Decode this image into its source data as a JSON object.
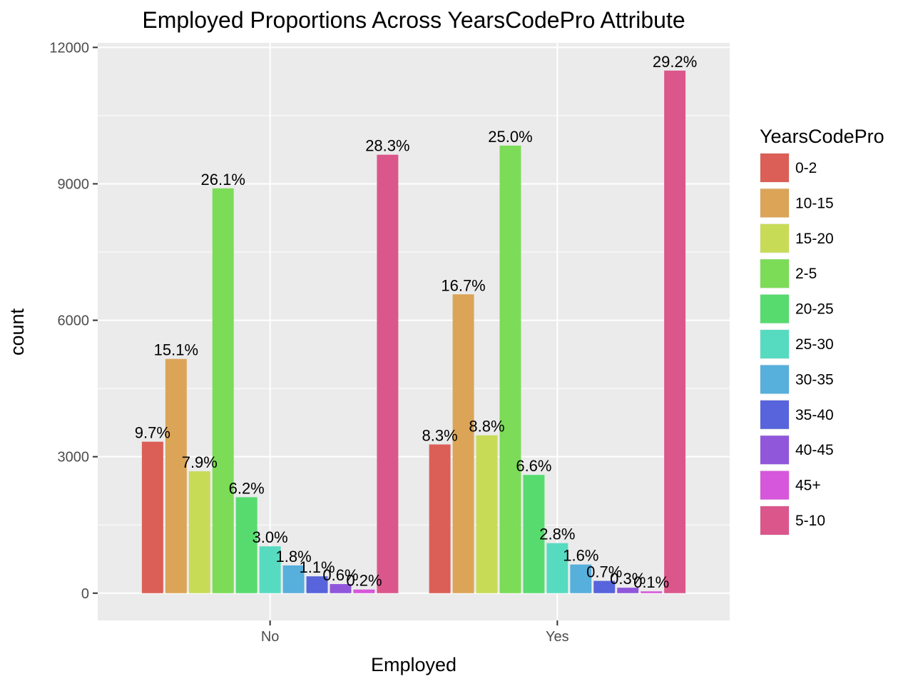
{
  "chart_data": {
    "type": "bar",
    "title": "Employed Proportions Across YearsCodePro Attribute",
    "xlabel": "Employed",
    "ylabel": "count",
    "ylim": [
      -600,
      12100
    ],
    "yticks": [
      0,
      3000,
      6000,
      9000,
      12000
    ],
    "grid": true,
    "legend": {
      "title": "YearsCodePro",
      "placement": "right"
    },
    "categories": [
      "No",
      "Yes"
    ],
    "series": [
      {
        "name": "0-2",
        "color": "#DB5F57",
        "values": [
          3330,
          3270
        ],
        "labels": [
          "9.7%",
          "8.3%"
        ]
      },
      {
        "name": "10-15",
        "color": "#DBA457",
        "values": [
          5150,
          6570
        ],
        "labels": [
          "15.1%",
          "16.7%"
        ]
      },
      {
        "name": "15-20",
        "color": "#C8DB57",
        "values": [
          2680,
          3470
        ],
        "labels": [
          "7.9%",
          "8.8%"
        ]
      },
      {
        "name": "2-5",
        "color": "#7CDB57",
        "values": [
          8900,
          9840
        ],
        "labels": [
          "26.1%",
          "25.0%"
        ]
      },
      {
        "name": "20-25",
        "color": "#57DB6F",
        "values": [
          2110,
          2600
        ],
        "labels": [
          "6.2%",
          "6.6%"
        ]
      },
      {
        "name": "25-30",
        "color": "#57DBC0",
        "values": [
          1030,
          1100
        ],
        "labels": [
          "3.0%",
          "2.8%"
        ]
      },
      {
        "name": "30-35",
        "color": "#57AFDB",
        "values": [
          610,
          630
        ],
        "labels": [
          "1.8%",
          "1.6%"
        ]
      },
      {
        "name": "35-40",
        "color": "#5764DB",
        "values": [
          370,
          270
        ],
        "labels": [
          "1.1%",
          "0.7%"
        ]
      },
      {
        "name": "40-45",
        "color": "#9057DB",
        "values": [
          200,
          120
        ],
        "labels": [
          "0.6%",
          "0.3%"
        ]
      },
      {
        "name": "45+",
        "color": "#D657DB",
        "values": [
          80,
          40
        ],
        "labels": [
          "0.2%",
          "0.1%"
        ]
      },
      {
        "name": "5-10",
        "color": "#DB578B",
        "values": [
          9640,
          11490
        ],
        "labels": [
          "28.3%",
          "29.2%"
        ]
      }
    ]
  }
}
